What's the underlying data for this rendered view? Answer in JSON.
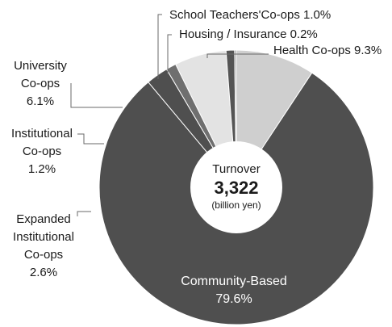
{
  "chart_data": {
    "type": "pie",
    "style": "donut",
    "center": {
      "title": "Turnover",
      "value": "3,322",
      "unit": "(billion yen)"
    },
    "slices": [
      {
        "label": "Health Co-ops",
        "value": 9.3,
        "color": "#cfcfcf",
        "lines": [
          "Health Co-ops 9.3%"
        ]
      },
      {
        "label": "Community-Based",
        "value": 79.6,
        "color": "#4f4f4f",
        "lines": [
          "Community-Based",
          "79.6%"
        ]
      },
      {
        "label": "Expanded Institutional Co-ops",
        "value": 2.6,
        "color": "#4f4f4f",
        "lines": [
          "Expanded",
          "Institutional",
          "Co-ops",
          "2.6%"
        ]
      },
      {
        "label": "Institutional Co-ops",
        "value": 1.2,
        "color": "#6f6f6f",
        "lines": [
          "Institutional",
          "Co-ops",
          "1.2%"
        ]
      },
      {
        "label": "University Co-ops",
        "value": 6.1,
        "color": "#e3e3e3",
        "lines": [
          "University",
          "Co-ops",
          "6.1%"
        ]
      },
      {
        "label": "School Teachers'Co-ops",
        "value": 1.0,
        "color": "#555555",
        "lines": [
          "School Teachers'Co-ops 1.0%"
        ]
      },
      {
        "label": "Housing / Insurance",
        "value": 0.2,
        "color": "#9a9a9a",
        "lines": [
          "Housing / Insurance 0.2%"
        ]
      }
    ]
  }
}
